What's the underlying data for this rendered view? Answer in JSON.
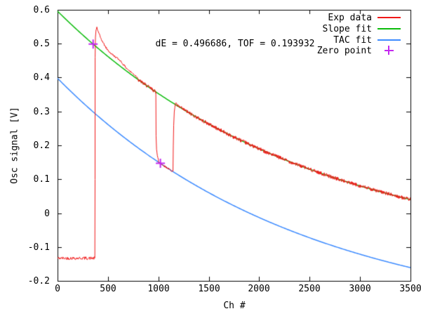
{
  "chart_data": {
    "type": "line",
    "title": "",
    "xlabel": "Ch #",
    "ylabel": "Osc signal [V]",
    "xlim": [
      0,
      3500
    ],
    "ylim": [
      -0.2,
      0.6
    ],
    "grid": false,
    "background": "#ffffff",
    "axis_color": "#000000",
    "xticks": {
      "values": [
        0,
        500,
        1000,
        1500,
        2000,
        2500,
        3000,
        3500
      ],
      "labels": [
        "0",
        "500",
        "1000",
        "1500",
        "2000",
        "2500",
        "3000",
        "3500"
      ]
    },
    "yticks": {
      "values": [
        -0.2,
        -0.1,
        0,
        0.1,
        0.2,
        0.3,
        0.4,
        0.5,
        0.6
      ],
      "labels": [
        "-0.2",
        "-0.1",
        "0",
        "0.1",
        "0.2",
        "0.3",
        "0.4",
        "0.5",
        "0.6"
      ]
    },
    "annotation": {
      "text": "dE = 0.496686, TOF = 0.193932",
      "x": 1760,
      "y": 0.498
    },
    "legend": {
      "position": "top-right-inside"
    },
    "series": [
      {
        "name": "Exp data",
        "color": "#f01818",
        "style": "noisy-line",
        "segments": [
          {
            "kind": "pts",
            "noise": 0.0045,
            "pts": [
              [
                0,
                -0.133
              ],
              [
                370,
                -0.133
              ]
            ]
          },
          {
            "kind": "pts",
            "noise": 0.003,
            "pts": [
              [
                370,
                -0.133
              ],
              [
                372,
                0.1
              ],
              [
                373,
                0.46
              ],
              [
                376,
                0.52
              ],
              [
                382,
                0.541
              ],
              [
                390,
                0.548
              ],
              [
                404,
                0.534
              ],
              [
                425,
                0.519
              ],
              [
                455,
                0.501
              ],
              [
                490,
                0.484
              ],
              [
                530,
                0.471
              ],
              [
                566,
                0.463
              ],
              [
                620,
                0.451
              ],
              [
                670,
                0.432
              ],
              [
                720,
                0.418
              ],
              [
                770,
                0.407
              ],
              [
                800,
                0.397
              ]
            ]
          },
          {
            "kind": "follow",
            "ref": 1,
            "noise": 0.0055,
            "x0": 800,
            "x1": 975
          },
          {
            "kind": "pts",
            "noise": 0.002,
            "pts": [
              [
                975,
                0.357
              ],
              [
                977,
                0.23
              ],
              [
                982,
                0.19
              ],
              [
                990,
                0.17
              ],
              [
                1000,
                0.157
              ]
            ]
          },
          {
            "kind": "follow",
            "ref": 2,
            "noise": 0.0025,
            "x0": 1000,
            "x1": 1145
          },
          {
            "kind": "pts",
            "noise": 0.002,
            "pts": [
              [
                1145,
                0.123
              ],
              [
                1148,
                0.2
              ],
              [
                1152,
                0.26
              ],
              [
                1158,
                0.3
              ],
              [
                1168,
                0.323
              ],
              [
                1180,
                0.326
              ]
            ]
          },
          {
            "kind": "follow",
            "ref": 1,
            "noise": 0.0055,
            "x0": 1180,
            "x1": 3500
          }
        ]
      },
      {
        "name": "Slope fit",
        "color": "#0cbc0c",
        "style": "line",
        "model": {
          "form": "A*exp(-x/tau)+C",
          "A": 0.738,
          "tau": 2500,
          "C": -0.142
        },
        "x_range": [
          0,
          3500
        ]
      },
      {
        "name": "TAC fit",
        "color": "#3d8bff",
        "style": "line",
        "model": {
          "form": "A*exp(-x/tau)+C",
          "A": 0.731,
          "tau": 2420,
          "C": -0.333
        },
        "x_range": [
          0,
          3500
        ]
      },
      {
        "name": "Zero point",
        "color": "#c428ef",
        "style": "points",
        "marker": "plus",
        "points": [
          [
            353,
            0.499
          ],
          [
            1020,
            0.147
          ]
        ]
      }
    ]
  }
}
